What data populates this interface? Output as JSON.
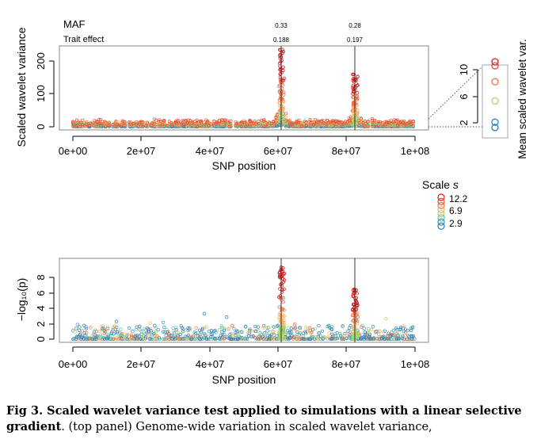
{
  "chart_data": [
    {
      "type": "scatter",
      "panel": "top",
      "ylabel": "Scaled wavelet variance",
      "xlabel": "SNP position",
      "xlim": [
        0,
        100000000
      ],
      "ylim": [
        0,
        240
      ],
      "x_ticks": [
        "0e+00",
        "2e+07",
        "4e+07",
        "6e+07",
        "8e+07",
        "1e+08"
      ],
      "y_ticks": [
        "0",
        "100",
        "200"
      ],
      "annotations": {
        "row1_label": "MAF",
        "row2_label": "Trait effect",
        "markers": [
          {
            "x": 61000000,
            "maf": "0.33",
            "effect": "0.188"
          },
          {
            "x": 82500000,
            "maf": "0.28",
            "effect": "0.197"
          }
        ]
      },
      "peaks": [
        {
          "x": 61000000,
          "max_value": 235
        },
        {
          "x": 82500000,
          "max_value": 160
        }
      ],
      "baseline_max_by_scale": [
        {
          "scale": 12.2,
          "value": 25
        },
        {
          "scale": 6.9,
          "value": 12
        },
        {
          "scale": 2.9,
          "value": 3
        }
      ]
    },
    {
      "type": "scatter",
      "panel": "inset",
      "ylabel": "Mean scaled wavelet var.",
      "y_ticks": [
        "2",
        "6",
        "10"
      ],
      "ylim": [
        0.5,
        12
      ],
      "points": [
        {
          "scale": 12.2,
          "value": 11.2
        },
        {
          "scale": 11.0,
          "value": 10.6
        },
        {
          "scale": 9.0,
          "value": 8.2
        },
        {
          "scale": 6.9,
          "value": 5.3
        },
        {
          "scale": 4.5,
          "value": 2.1
        },
        {
          "scale": 2.9,
          "value": 1.3
        }
      ]
    },
    {
      "type": "scatter",
      "panel": "bottom",
      "ylabel": "−log₁₀(p)",
      "xlabel": "SNP position",
      "xlim": [
        0,
        100000000
      ],
      "ylim": [
        0,
        10
      ],
      "x_ticks": [
        "0e+00",
        "2e+07",
        "4e+07",
        "6e+07",
        "8e+07",
        "1e+08"
      ],
      "y_ticks": [
        "0",
        "2",
        "4",
        "6",
        "8"
      ],
      "peaks": [
        {
          "x": 61000000,
          "max_value": 9.8
        },
        {
          "x": 82500000,
          "max_value": 6.5
        }
      ]
    }
  ],
  "legend": {
    "title": "Scale",
    "title_symbol": "s",
    "labels": [
      "12.2",
      "6.9",
      "2.9"
    ],
    "colors": [
      "#d7191c",
      "#e34a33",
      "#f46d43",
      "#fdae61",
      "#a6d96a",
      "#66c2a5",
      "#3288bd",
      "#2b7bba"
    ]
  },
  "caption": {
    "bold": "Fig 3. Scaled wavelet variance test applied to simulations with a linear selective gradient",
    "rest": ". (top panel) Genome-wide variation in scaled wavelet variance,"
  }
}
